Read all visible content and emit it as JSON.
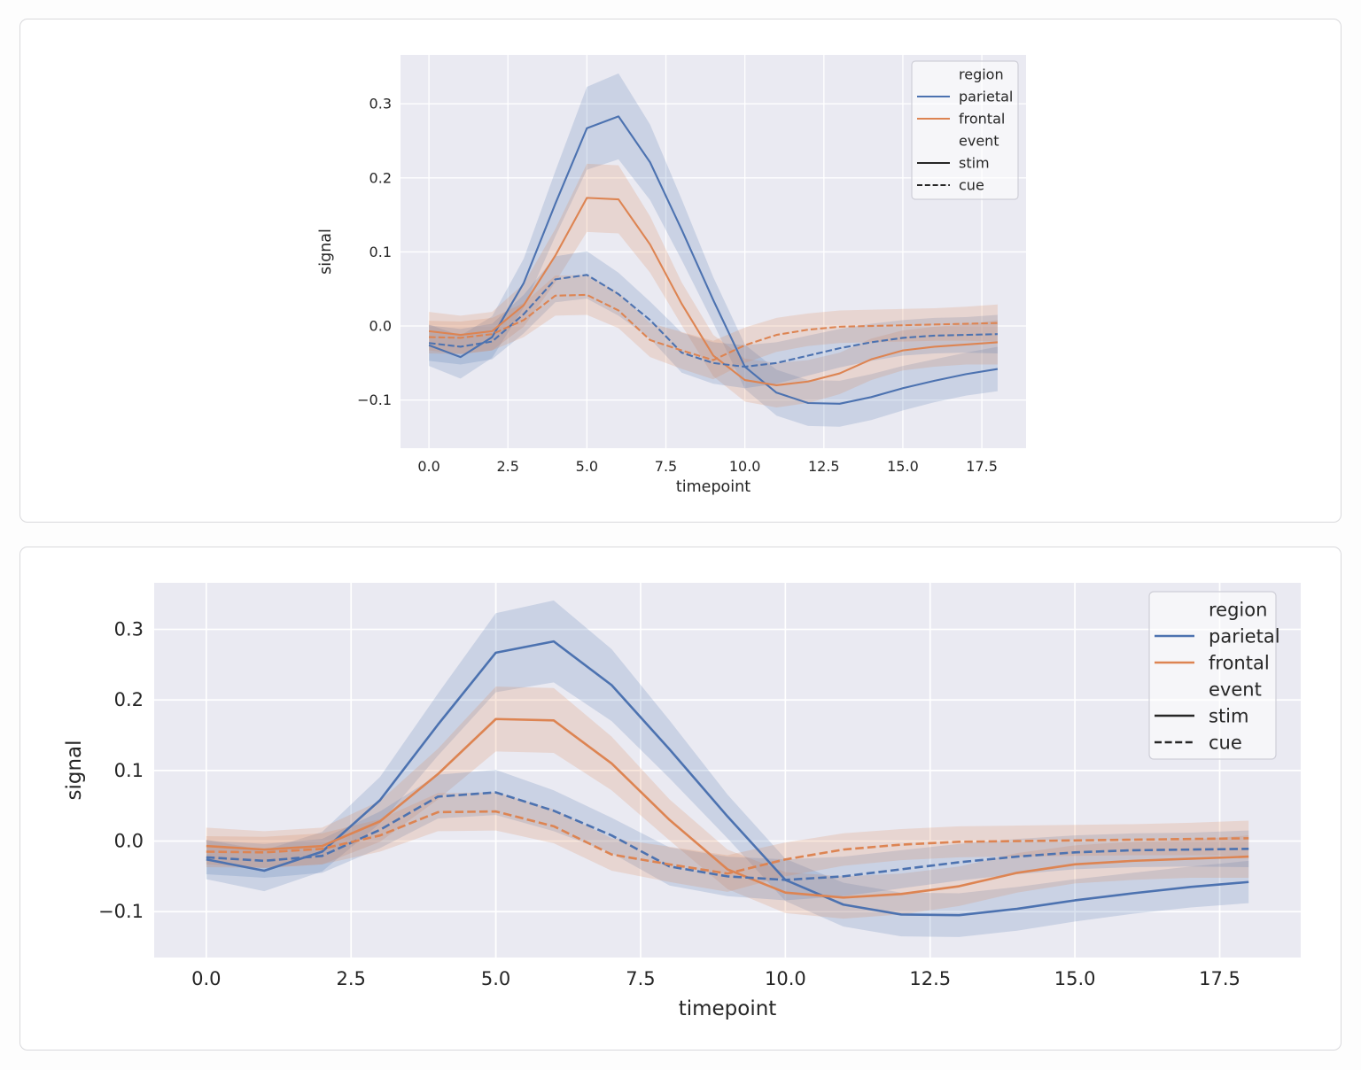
{
  "page": {
    "background": "#fdfdfd",
    "card_background": "#ffffff",
    "card_border": "#d9d9dc"
  },
  "chart_data": {
    "type": "line",
    "title": "",
    "xlabel": "timepoint",
    "ylabel": "signal",
    "x": [
      0,
      1,
      2,
      3,
      4,
      5,
      6,
      7,
      8,
      9,
      10,
      11,
      12,
      13,
      14,
      15,
      16,
      17,
      18
    ],
    "xlim": [
      -0.9,
      18.9
    ],
    "ylim": [
      -0.165,
      0.366
    ],
    "xticks": [
      0,
      2.5,
      5,
      7.5,
      10,
      12.5,
      15,
      17.5
    ],
    "xtick_labels": [
      "0.0",
      "2.5",
      "5.0",
      "7.5",
      "10.0",
      "12.5",
      "15.0",
      "17.5"
    ],
    "yticks": [
      -0.1,
      0,
      0.1,
      0.2,
      0.3
    ],
    "ytick_labels": [
      "−0.1",
      "0.0",
      "0.1",
      "0.2",
      "0.3"
    ],
    "grid": true,
    "style": {
      "axes_bg": "#eaeaf2",
      "grid_color": "#ffffff",
      "text_color": "#262626",
      "band_opacity": 0.2
    },
    "legend": {
      "position": "upper right",
      "entries": [
        {
          "label": "region",
          "header": true
        },
        {
          "label": "parietal",
          "color": "#4c72b0",
          "dash": "solid"
        },
        {
          "label": "frontal",
          "color": "#dd8452",
          "dash": "solid"
        },
        {
          "label": "event",
          "header": true
        },
        {
          "label": "stim",
          "color": "#262626",
          "dash": "solid"
        },
        {
          "label": "cue",
          "color": "#262626",
          "dash": "dashed"
        }
      ]
    },
    "series": [
      {
        "name": "parietal-stim",
        "region": "parietal",
        "event": "stim",
        "color": "#4c72b0",
        "dash": "solid",
        "values": [
          -0.026,
          -0.042,
          -0.015,
          0.058,
          0.165,
          0.267,
          0.283,
          0.221,
          0.13,
          0.035,
          -0.055,
          -0.09,
          -0.104,
          -0.105,
          -0.096,
          -0.084,
          -0.074,
          -0.065,
          -0.058
        ],
        "ci_halfwidth": [
          0.028,
          0.029,
          0.028,
          0.033,
          0.044,
          0.056,
          0.058,
          0.051,
          0.041,
          0.031,
          0.03,
          0.031,
          0.031,
          0.031,
          0.031,
          0.03,
          0.029,
          0.029,
          0.03
        ]
      },
      {
        "name": "frontal-stim",
        "region": "frontal",
        "event": "stim",
        "color": "#dd8452",
        "dash": "solid",
        "values": [
          -0.007,
          -0.012,
          -0.007,
          0.028,
          0.095,
          0.173,
          0.171,
          0.11,
          0.03,
          -0.04,
          -0.073,
          -0.08,
          -0.075,
          -0.064,
          -0.045,
          -0.033,
          -0.028,
          -0.025,
          -0.022
        ],
        "ci_halfwidth": [
          0.026,
          0.026,
          0.026,
          0.029,
          0.036,
          0.046,
          0.046,
          0.038,
          0.029,
          0.028,
          0.029,
          0.03,
          0.029,
          0.028,
          0.028,
          0.027,
          0.027,
          0.027,
          0.03
        ]
      },
      {
        "name": "parietal-cue",
        "region": "parietal",
        "event": "cue",
        "color": "#4c72b0",
        "dash": "dashed",
        "values": [
          -0.023,
          -0.028,
          -0.021,
          0.016,
          0.063,
          0.069,
          0.043,
          0.008,
          -0.036,
          -0.05,
          -0.055,
          -0.05,
          -0.04,
          -0.03,
          -0.022,
          -0.016,
          -0.013,
          -0.012,
          -0.011
        ],
        "ci_halfwidth": [
          0.024,
          0.024,
          0.024,
          0.026,
          0.031,
          0.032,
          0.029,
          0.025,
          0.027,
          0.028,
          0.029,
          0.028,
          0.027,
          0.026,
          0.025,
          0.024,
          0.024,
          0.024,
          0.026
        ]
      },
      {
        "name": "frontal-cue",
        "region": "frontal",
        "event": "cue",
        "color": "#dd8452",
        "dash": "dashed",
        "values": [
          -0.015,
          -0.016,
          -0.011,
          0.008,
          0.041,
          0.042,
          0.021,
          -0.019,
          -0.033,
          -0.046,
          -0.026,
          -0.012,
          -0.005,
          -0.001,
          0.0,
          0.001,
          0.002,
          0.003,
          0.004
        ],
        "ci_halfwidth": [
          0.022,
          0.022,
          0.022,
          0.023,
          0.027,
          0.027,
          0.024,
          0.023,
          0.025,
          0.026,
          0.024,
          0.023,
          0.022,
          0.022,
          0.022,
          0.022,
          0.022,
          0.023,
          0.025
        ]
      }
    ],
    "panels": [
      {
        "name": "top",
        "description": "same data, smaller centered axes"
      },
      {
        "name": "bottom",
        "description": "same data, large full-width axes"
      }
    ]
  }
}
